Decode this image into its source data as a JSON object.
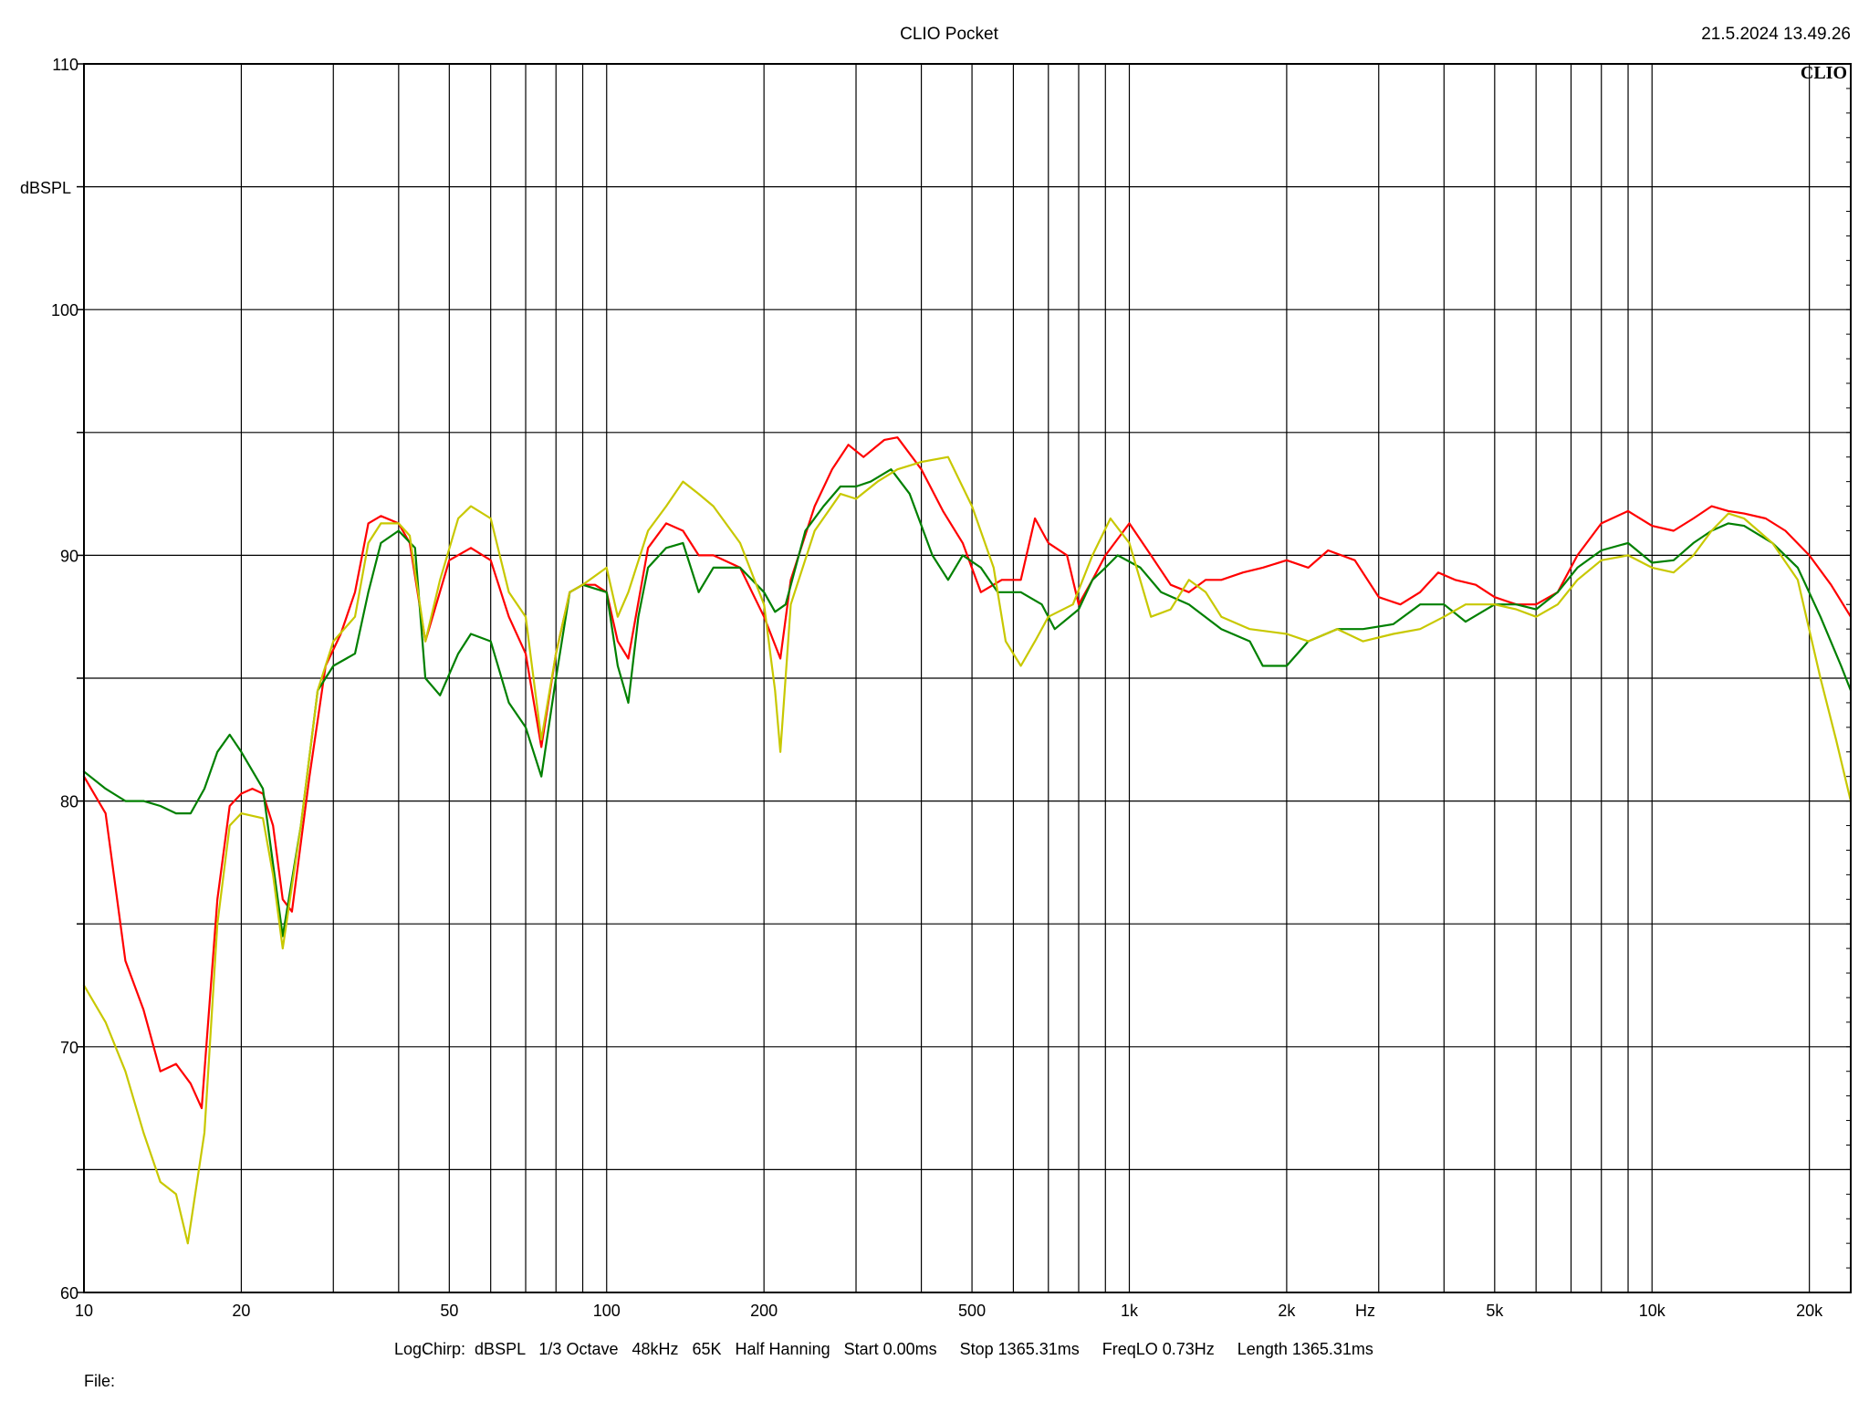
{
  "header": {
    "title": "CLIO Pocket",
    "timestamp": "21.5.2024 13.49.26",
    "logo": "CLIO"
  },
  "footer": {
    "settings": "LogChirp:  dBSPL   1/3 Octave   48kHz   65K   Half Hanning   Start 0.00ms     Stop 1365.31ms     FreqLO 0.73Hz     Length 1365.31ms",
    "file_label": "File:"
  },
  "chart_data": {
    "type": "line",
    "title": "CLIO Pocket",
    "xlabel": "Hz",
    "ylabel": "dBSPL",
    "x_scale": "log",
    "xlim": [
      10,
      24000
    ],
    "ylim": [
      60,
      110
    ],
    "grid": true,
    "legend": "none",
    "x_ticks": [
      {
        "value": 10,
        "label": "10"
      },
      {
        "value": 20,
        "label": "20"
      },
      {
        "value": 50,
        "label": "50"
      },
      {
        "value": 100,
        "label": "100"
      },
      {
        "value": 200,
        "label": "200"
      },
      {
        "value": 500,
        "label": "500"
      },
      {
        "value": 1000,
        "label": "1k"
      },
      {
        "value": 2000,
        "label": "2k"
      },
      {
        "value": 5000,
        "label": "5k"
      },
      {
        "value": 10000,
        "label": "10k"
      },
      {
        "value": 20000,
        "label": "20k"
      }
    ],
    "y_ticks": [
      {
        "value": 60,
        "label": "60"
      },
      {
        "value": 70,
        "label": "70"
      },
      {
        "value": 80,
        "label": "80"
      },
      {
        "value": 90,
        "label": "90"
      },
      {
        "value": 100,
        "label": "100"
      },
      {
        "value": 110,
        "label": "110"
      }
    ],
    "series": [
      {
        "color": "#ff0000",
        "points": [
          [
            10,
            81.0
          ],
          [
            11,
            79.5
          ],
          [
            12,
            73.5
          ],
          [
            13,
            71.5
          ],
          [
            14,
            69.0
          ],
          [
            15,
            69.3
          ],
          [
            16,
            68.5
          ],
          [
            16.8,
            67.5
          ],
          [
            18,
            76.0
          ],
          [
            19,
            79.8
          ],
          [
            20,
            80.3
          ],
          [
            21,
            80.5
          ],
          [
            22,
            80.3
          ],
          [
            23,
            79.0
          ],
          [
            24,
            76.0
          ],
          [
            25,
            75.5
          ],
          [
            27,
            81.0
          ],
          [
            29,
            85.5
          ],
          [
            31,
            86.8
          ],
          [
            33,
            88.5
          ],
          [
            35,
            91.3
          ],
          [
            37,
            91.6
          ],
          [
            40,
            91.3
          ],
          [
            42,
            90.5
          ],
          [
            45,
            86.5
          ],
          [
            50,
            89.8
          ],
          [
            55,
            90.3
          ],
          [
            60,
            89.8
          ],
          [
            65,
            87.5
          ],
          [
            70,
            86.0
          ],
          [
            75,
            82.2
          ],
          [
            80,
            86.0
          ],
          [
            85,
            88.5
          ],
          [
            90,
            88.8
          ],
          [
            95,
            88.8
          ],
          [
            100,
            88.5
          ],
          [
            105,
            86.5
          ],
          [
            110,
            85.8
          ],
          [
            120,
            90.3
          ],
          [
            130,
            91.3
          ],
          [
            140,
            91.0
          ],
          [
            150,
            90.0
          ],
          [
            160,
            90.0
          ],
          [
            180,
            89.5
          ],
          [
            200,
            87.5
          ],
          [
            215,
            85.8
          ],
          [
            225,
            89.0
          ],
          [
            250,
            92.0
          ],
          [
            270,
            93.5
          ],
          [
            290,
            94.5
          ],
          [
            310,
            94.0
          ],
          [
            340,
            94.7
          ],
          [
            360,
            94.8
          ],
          [
            400,
            93.5
          ],
          [
            440,
            91.8
          ],
          [
            480,
            90.5
          ],
          [
            520,
            88.5
          ],
          [
            570,
            89.0
          ],
          [
            620,
            89.0
          ],
          [
            660,
            91.5
          ],
          [
            700,
            90.5
          ],
          [
            760,
            90.0
          ],
          [
            800,
            88.0
          ],
          [
            850,
            89.0
          ],
          [
            900,
            90.0
          ],
          [
            1000,
            91.3
          ],
          [
            1100,
            90.0
          ],
          [
            1200,
            88.8
          ],
          [
            1300,
            88.5
          ],
          [
            1400,
            89.0
          ],
          [
            1500,
            89.0
          ],
          [
            1650,
            89.3
          ],
          [
            1800,
            89.5
          ],
          [
            2000,
            89.8
          ],
          [
            2200,
            89.5
          ],
          [
            2400,
            90.2
          ],
          [
            2700,
            89.8
          ],
          [
            3000,
            88.3
          ],
          [
            3300,
            88.0
          ],
          [
            3600,
            88.5
          ],
          [
            3900,
            89.3
          ],
          [
            4200,
            89.0
          ],
          [
            4600,
            88.8
          ],
          [
            5000,
            88.3
          ],
          [
            5500,
            88.0
          ],
          [
            6000,
            88.0
          ],
          [
            6600,
            88.5
          ],
          [
            7200,
            90.0
          ],
          [
            8000,
            91.3
          ],
          [
            9000,
            91.8
          ],
          [
            10000,
            91.2
          ],
          [
            11000,
            91.0
          ],
          [
            12000,
            91.5
          ],
          [
            13000,
            92.0
          ],
          [
            14000,
            91.8
          ],
          [
            15000,
            91.7
          ],
          [
            16500,
            91.5
          ],
          [
            18000,
            91.0
          ],
          [
            20000,
            90.0
          ],
          [
            22000,
            88.8
          ],
          [
            24000,
            87.5
          ]
        ]
      },
      {
        "color": "#008000",
        "points": [
          [
            10,
            81.2
          ],
          [
            11,
            80.5
          ],
          [
            12,
            80.0
          ],
          [
            13,
            80.0
          ],
          [
            14,
            79.8
          ],
          [
            15,
            79.5
          ],
          [
            16,
            79.5
          ],
          [
            17,
            80.5
          ],
          [
            18,
            82.0
          ],
          [
            19,
            82.7
          ],
          [
            20,
            82.0
          ],
          [
            22,
            80.5
          ],
          [
            24,
            74.5
          ],
          [
            26,
            79.0
          ],
          [
            28,
            84.5
          ],
          [
            30,
            85.5
          ],
          [
            33,
            86.0
          ],
          [
            35,
            88.5
          ],
          [
            37,
            90.5
          ],
          [
            40,
            91.0
          ],
          [
            43,
            90.3
          ],
          [
            45,
            85.0
          ],
          [
            48,
            84.3
          ],
          [
            52,
            86.0
          ],
          [
            55,
            86.8
          ],
          [
            60,
            86.5
          ],
          [
            65,
            84.0
          ],
          [
            70,
            83.0
          ],
          [
            75,
            81.0
          ],
          [
            80,
            85.0
          ],
          [
            85,
            88.5
          ],
          [
            90,
            88.8
          ],
          [
            100,
            88.5
          ],
          [
            105,
            85.5
          ],
          [
            110,
            84.0
          ],
          [
            115,
            87.5
          ],
          [
            120,
            89.5
          ],
          [
            130,
            90.3
          ],
          [
            140,
            90.5
          ],
          [
            150,
            88.5
          ],
          [
            160,
            89.5
          ],
          [
            180,
            89.5
          ],
          [
            200,
            88.5
          ],
          [
            210,
            87.7
          ],
          [
            220,
            88.0
          ],
          [
            240,
            91.0
          ],
          [
            260,
            92.0
          ],
          [
            280,
            92.8
          ],
          [
            300,
            92.8
          ],
          [
            320,
            93.0
          ],
          [
            350,
            93.5
          ],
          [
            380,
            92.5
          ],
          [
            420,
            90.0
          ],
          [
            450,
            89.0
          ],
          [
            480,
            90.0
          ],
          [
            520,
            89.5
          ],
          [
            560,
            88.5
          ],
          [
            620,
            88.5
          ],
          [
            680,
            88.0
          ],
          [
            720,
            87.0
          ],
          [
            800,
            87.8
          ],
          [
            850,
            89.0
          ],
          [
            900,
            89.5
          ],
          [
            950,
            90.0
          ],
          [
            1050,
            89.5
          ],
          [
            1150,
            88.5
          ],
          [
            1300,
            88.0
          ],
          [
            1500,
            87.0
          ],
          [
            1700,
            86.5
          ],
          [
            1800,
            85.5
          ],
          [
            2000,
            85.5
          ],
          [
            2200,
            86.5
          ],
          [
            2500,
            87.0
          ],
          [
            2800,
            87.0
          ],
          [
            3200,
            87.2
          ],
          [
            3600,
            88.0
          ],
          [
            4000,
            88.0
          ],
          [
            4400,
            87.3
          ],
          [
            5000,
            88.0
          ],
          [
            5500,
            88.0
          ],
          [
            6000,
            87.8
          ],
          [
            6600,
            88.5
          ],
          [
            7200,
            89.5
          ],
          [
            8000,
            90.2
          ],
          [
            9000,
            90.5
          ],
          [
            10000,
            89.7
          ],
          [
            11000,
            89.8
          ],
          [
            12000,
            90.5
          ],
          [
            13000,
            91.0
          ],
          [
            14000,
            91.3
          ],
          [
            15000,
            91.2
          ],
          [
            17000,
            90.5
          ],
          [
            19000,
            89.5
          ],
          [
            21000,
            87.5
          ],
          [
            23000,
            85.5
          ],
          [
            24000,
            84.5
          ]
        ]
      },
      {
        "color": "#c8c800",
        "points": [
          [
            10,
            72.5
          ],
          [
            11,
            71.0
          ],
          [
            12,
            69.0
          ],
          [
            13,
            66.5
          ],
          [
            14,
            64.5
          ],
          [
            15,
            64.0
          ],
          [
            15.8,
            62.0
          ],
          [
            17,
            66.5
          ],
          [
            18,
            75.0
          ],
          [
            19,
            79.0
          ],
          [
            20,
            79.5
          ],
          [
            22,
            79.3
          ],
          [
            23,
            77.0
          ],
          [
            24,
            74.0
          ],
          [
            26,
            79.0
          ],
          [
            28,
            84.5
          ],
          [
            30,
            86.5
          ],
          [
            33,
            87.5
          ],
          [
            35,
            90.5
          ],
          [
            37,
            91.3
          ],
          [
            40,
            91.3
          ],
          [
            42,
            90.8
          ],
          [
            45,
            86.5
          ],
          [
            48,
            89.0
          ],
          [
            52,
            91.5
          ],
          [
            55,
            92.0
          ],
          [
            60,
            91.5
          ],
          [
            65,
            88.5
          ],
          [
            70,
            87.5
          ],
          [
            75,
            82.5
          ],
          [
            80,
            86.0
          ],
          [
            85,
            88.5
          ],
          [
            90,
            88.8
          ],
          [
            100,
            89.5
          ],
          [
            105,
            87.5
          ],
          [
            110,
            88.5
          ],
          [
            120,
            91.0
          ],
          [
            130,
            92.0
          ],
          [
            140,
            93.0
          ],
          [
            150,
            92.5
          ],
          [
            160,
            92.0
          ],
          [
            180,
            90.5
          ],
          [
            200,
            88.0
          ],
          [
            210,
            84.5
          ],
          [
            215,
            82.0
          ],
          [
            225,
            88.0
          ],
          [
            250,
            91.0
          ],
          [
            280,
            92.5
          ],
          [
            300,
            92.3
          ],
          [
            330,
            93.0
          ],
          [
            360,
            93.5
          ],
          [
            400,
            93.8
          ],
          [
            450,
            94.0
          ],
          [
            500,
            92.0
          ],
          [
            550,
            89.5
          ],
          [
            580,
            86.5
          ],
          [
            620,
            85.5
          ],
          [
            660,
            86.5
          ],
          [
            700,
            87.5
          ],
          [
            780,
            88.0
          ],
          [
            850,
            90.0
          ],
          [
            920,
            91.5
          ],
          [
            1000,
            90.5
          ],
          [
            1100,
            87.5
          ],
          [
            1200,
            87.8
          ],
          [
            1300,
            89.0
          ],
          [
            1400,
            88.5
          ],
          [
            1500,
            87.5
          ],
          [
            1700,
            87.0
          ],
          [
            2000,
            86.8
          ],
          [
            2200,
            86.5
          ],
          [
            2500,
            87.0
          ],
          [
            2800,
            86.5
          ],
          [
            3200,
            86.8
          ],
          [
            3600,
            87.0
          ],
          [
            4000,
            87.5
          ],
          [
            4400,
            88.0
          ],
          [
            5000,
            88.0
          ],
          [
            5500,
            87.8
          ],
          [
            6000,
            87.5
          ],
          [
            6600,
            88.0
          ],
          [
            7200,
            89.0
          ],
          [
            8000,
            89.8
          ],
          [
            9000,
            90.0
          ],
          [
            10000,
            89.5
          ],
          [
            11000,
            89.3
          ],
          [
            12000,
            90.0
          ],
          [
            13000,
            91.0
          ],
          [
            14000,
            91.7
          ],
          [
            15000,
            91.5
          ],
          [
            17000,
            90.5
          ],
          [
            19000,
            89.0
          ],
          [
            21000,
            85.0
          ],
          [
            22500,
            82.5
          ],
          [
            24000,
            80.0
          ]
        ]
      }
    ]
  }
}
